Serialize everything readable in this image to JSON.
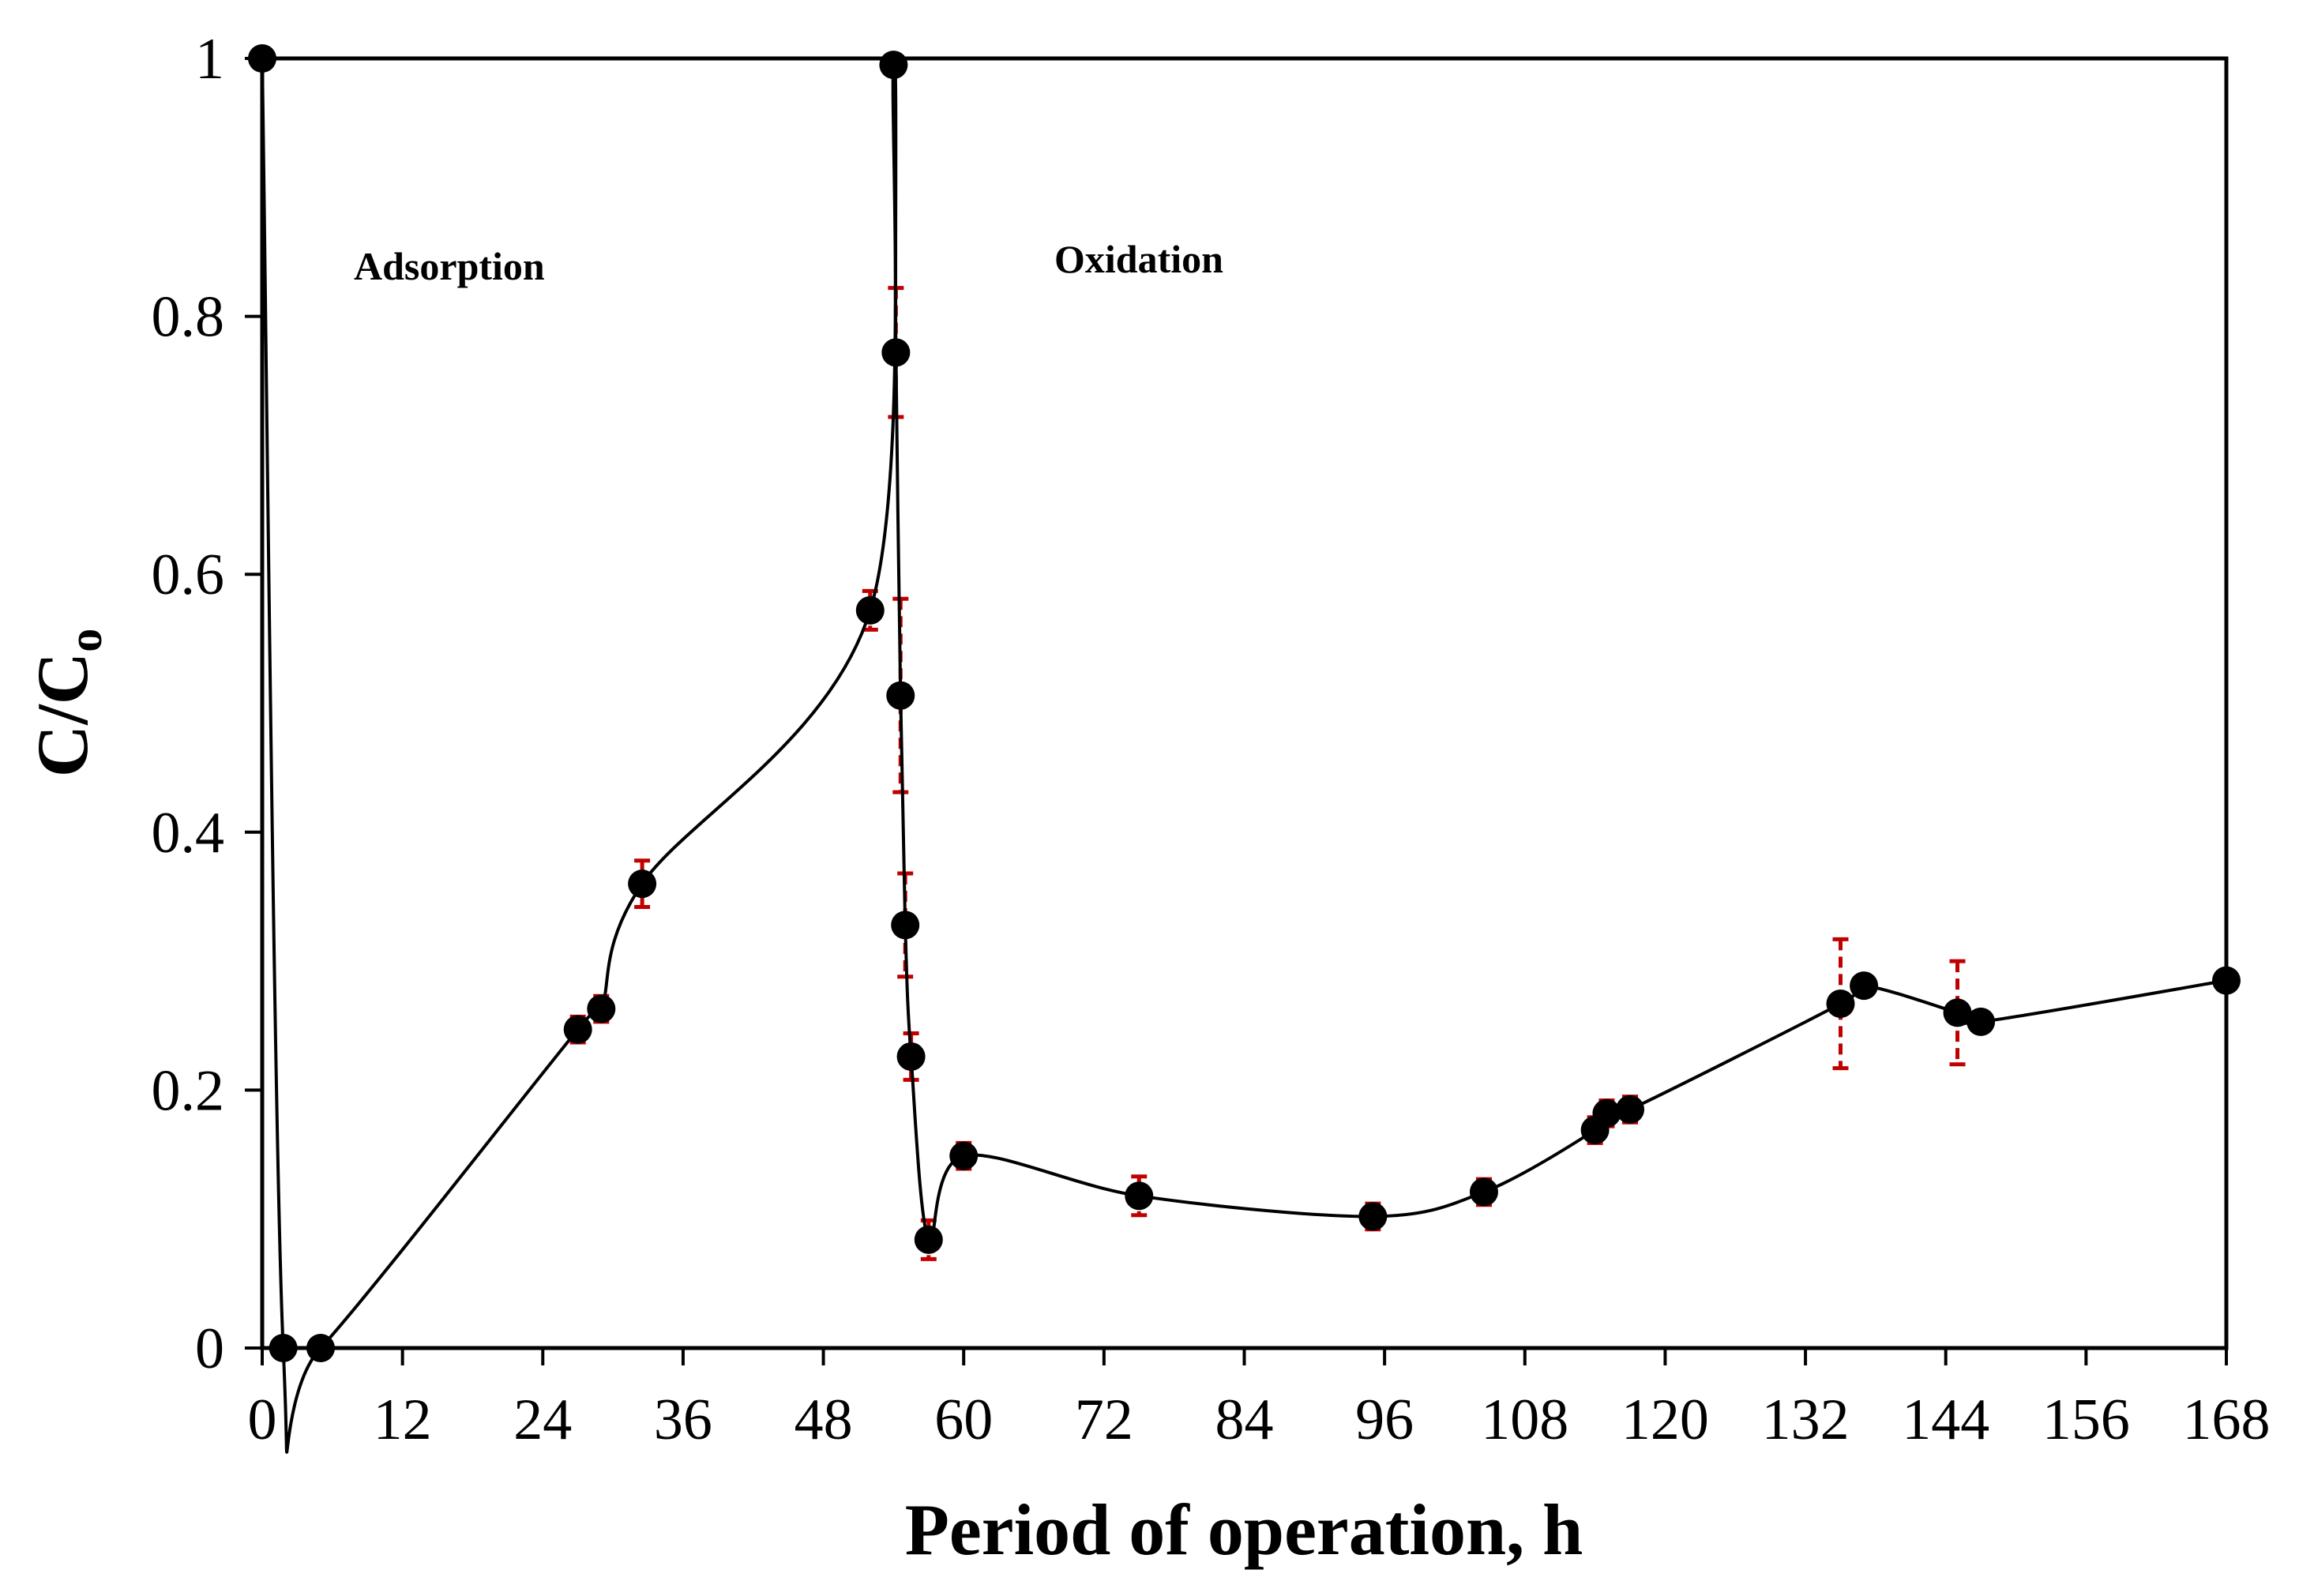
{
  "chart_data": {
    "type": "line",
    "title": "",
    "xlabel": "Period of operation, h",
    "ylabel": {
      "main": "C/C",
      "subscript": "o"
    },
    "xlim": [
      0,
      168
    ],
    "ylim": [
      0,
      1
    ],
    "xticks": [
      0,
      12,
      24,
      36,
      48,
      60,
      72,
      84,
      96,
      108,
      120,
      132,
      144,
      156,
      168
    ],
    "yticks": [
      0,
      0.2,
      0.4,
      0.6,
      0.8,
      1
    ],
    "ytick_labels": [
      "0",
      "0.2",
      "0.4",
      "0.6",
      "0.8",
      "1"
    ],
    "grid": false,
    "annotations": [
      {
        "text": "Adsorption",
        "x": 18,
        "y": 0.84
      },
      {
        "text": "Oxidation",
        "x": 77,
        "y": 0.845
      }
    ],
    "colors": {
      "line": "#000000",
      "marker": "#000000",
      "error_bar": "#c00000"
    },
    "series": [
      {
        "name": "C/Co",
        "points": [
          {
            "x": 0,
            "y": 1.0
          },
          {
            "x": 1.8,
            "y": 0.0
          },
          {
            "x": 5,
            "y": 0.0
          },
          {
            "x": 27,
            "y": 0.247,
            "err": 0.01
          },
          {
            "x": 29,
            "y": 0.263,
            "err": 0.01
          },
          {
            "x": 32.5,
            "y": 0.36,
            "err": 0.018
          },
          {
            "x": 52,
            "y": 0.572,
            "err": 0.015
          },
          {
            "x": 54,
            "y": 0.995
          },
          {
            "x": 54.2,
            "y": 0.772,
            "err": 0.05
          },
          {
            "x": 54.6,
            "y": 0.506,
            "err": 0.075
          },
          {
            "x": 55.0,
            "y": 0.328,
            "err": 0.04
          },
          {
            "x": 55.5,
            "y": 0.226,
            "err": 0.018
          },
          {
            "x": 57,
            "y": 0.084,
            "err": 0.015
          },
          {
            "x": 60,
            "y": 0.149,
            "err": 0.01
          },
          {
            "x": 75,
            "y": 0.118,
            "err": 0.015
          },
          {
            "x": 95,
            "y": 0.102,
            "err": 0.01
          },
          {
            "x": 104.5,
            "y": 0.121,
            "err": 0.01
          },
          {
            "x": 114,
            "y": 0.169,
            "err": 0.01
          },
          {
            "x": 115,
            "y": 0.182,
            "err": 0.01
          },
          {
            "x": 117,
            "y": 0.185,
            "err": 0.01
          },
          {
            "x": 135,
            "y": 0.267,
            "err": 0.05
          },
          {
            "x": 137,
            "y": 0.281
          },
          {
            "x": 145,
            "y": 0.26,
            "err": 0.04
          },
          {
            "x": 147,
            "y": 0.253
          },
          {
            "x": 168,
            "y": 0.285
          }
        ]
      }
    ]
  }
}
